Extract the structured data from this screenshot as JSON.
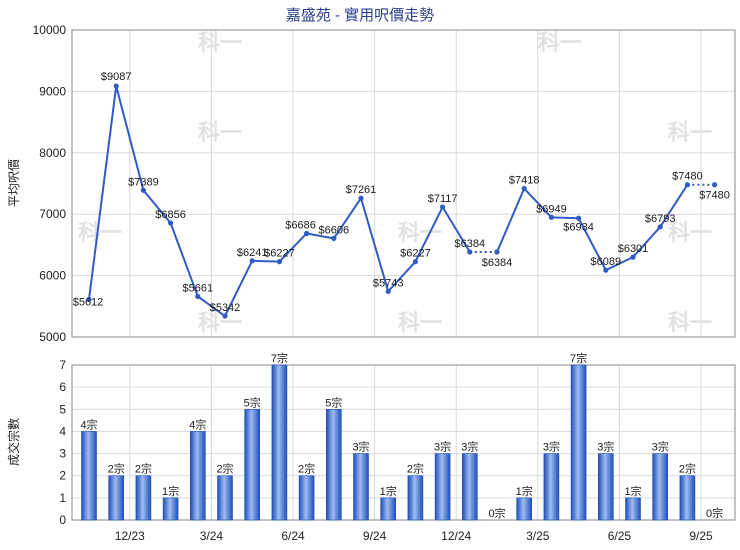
{
  "chart_data": [
    {
      "type": "line",
      "title": "嘉盛苑 - 實用呎價走勢",
      "ylabel": "平均呎價",
      "ylim": [
        5000,
        10000
      ],
      "yticks": [
        5000,
        6000,
        7000,
        8000,
        9000,
        10000
      ],
      "grid": true,
      "series": [
        {
          "values": [
            5612,
            9087,
            7389,
            6856,
            5661,
            5342,
            6241,
            6227,
            6686,
            6606,
            7261,
            5743,
            6227,
            7117,
            6384,
            6384,
            7418,
            6949,
            6934,
            6089,
            6301,
            6793,
            7480,
            7480
          ],
          "labels": [
            "$5612",
            "$9087",
            "$7389",
            "$6856",
            "$5661",
            "$5342",
            "$6241",
            "$6227",
            "$6686",
            "$6606",
            "$7261",
            "$5743",
            "$6227",
            "$7117",
            "$6384",
            "$6384",
            "$7418",
            "$6949",
            "$6934",
            "$6089",
            "$6301",
            "$6793",
            "$7480",
            "$7480"
          ],
          "dotted_segments": [
            [
              14,
              15
            ],
            [
              22,
              23
            ]
          ]
        }
      ]
    },
    {
      "type": "bar",
      "ylabel": "成交宗數",
      "ylim": [
        0,
        7
      ],
      "yticks": [
        0,
        1,
        2,
        3,
        4,
        5,
        6,
        7
      ],
      "grid": true,
      "xticks": [
        {
          "index": 2,
          "label": "12/23"
        },
        {
          "index": 5,
          "label": "3/24"
        },
        {
          "index": 8,
          "label": "6/24"
        },
        {
          "index": 11,
          "label": "9/24"
        },
        {
          "index": 14,
          "label": "12/24"
        },
        {
          "index": 17,
          "label": "3/25"
        },
        {
          "index": 20,
          "label": "6/25"
        },
        {
          "index": 23,
          "label": "9/25"
        }
      ],
      "values": [
        4,
        2,
        2,
        1,
        4,
        2,
        5,
        7,
        2,
        5,
        3,
        1,
        2,
        3,
        3,
        0,
        1,
        3,
        7,
        3,
        1,
        3,
        2,
        0
      ],
      "labels": [
        "4宗",
        "2宗",
        "2宗",
        "1宗",
        "4宗",
        "2宗",
        "5宗",
        "7宗",
        "2宗",
        "5宗",
        "3宗",
        "1宗",
        "2宗",
        "3宗",
        "3宗",
        "0宗",
        "1宗",
        "3宗",
        "7宗",
        "3宗",
        "1宗",
        "3宗",
        "2宗",
        "0宗"
      ]
    }
  ],
  "watermark": "科一",
  "colors": {
    "line": "#2f5cc4",
    "bar_light": "#8fb1ea",
    "bar_dark": "#1f4fb8",
    "title": "#2a3f8f"
  }
}
